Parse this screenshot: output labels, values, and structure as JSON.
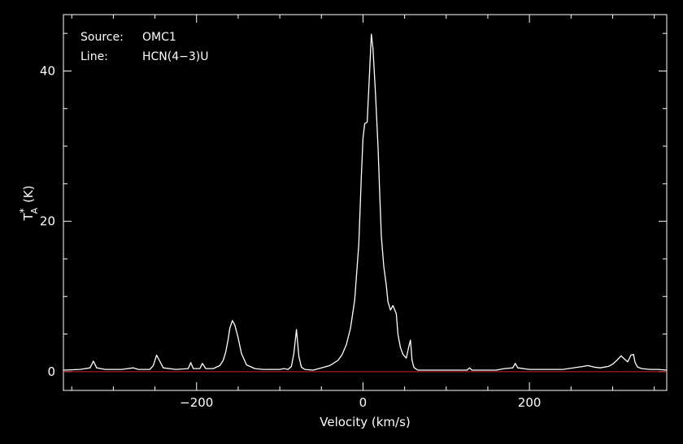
{
  "chart_data": {
    "type": "line",
    "annotations": [
      {
        "key": "Source:",
        "value": "OMC1"
      },
      {
        "key": "Line:",
        "value": "HCN(4−3)U"
      }
    ],
    "xlabel": "Velocity (km/s)",
    "ylabel_main": "T",
    "ylabel_sup": "*",
    "ylabel_sub": "A",
    "ylabel_unit": "(K)",
    "xlim": [
      -360,
      365
    ],
    "ylim": [
      -2.5,
      47.5
    ],
    "xticks": [
      -200,
      0,
      200
    ],
    "yticks": [
      0,
      20,
      40
    ],
    "xtick_labels": [
      "−200",
      "0",
      "200"
    ],
    "ytick_labels": [
      "0",
      "20",
      "40"
    ],
    "baseline": 0,
    "colors": {
      "background": "#000000",
      "spectrum": "#ffffff",
      "baseline": "#cc2222",
      "axes": "#ffffff"
    },
    "series": [
      {
        "x": [
          -360,
          -340,
          -328,
          -324,
          -320,
          -310,
          -290,
          -276,
          -270,
          -256,
          -252,
          -248,
          -240,
          -225,
          -210,
          -207,
          -204,
          -200,
          -196,
          -193,
          -189,
          -180,
          -172,
          -168,
          -165,
          -162,
          -160,
          -157,
          -154,
          -150,
          -146,
          -140,
          -130,
          -120,
          -100,
          -95,
          -90,
          -86,
          -83,
          -80,
          -77,
          -74,
          -70,
          -60,
          -50,
          -40,
          -30,
          -25,
          -20,
          -15,
          -10,
          -5,
          -2,
          0,
          2,
          5,
          8,
          10,
          12,
          15,
          18,
          20,
          22,
          25,
          28,
          30,
          33,
          36,
          40,
          42,
          45,
          48,
          52,
          55,
          57,
          59,
          61,
          63,
          66,
          70,
          80,
          100,
          125,
          128,
          131,
          140,
          160,
          170,
          180,
          183,
          186,
          200,
          240,
          265,
          270,
          278,
          285,
          295,
          300,
          305,
          310,
          315,
          318,
          322,
          325,
          327,
          330,
          335,
          345,
          355,
          365
        ],
        "y": [
          0.2,
          0.3,
          0.5,
          1.4,
          0.5,
          0.3,
          0.3,
          0.5,
          0.3,
          0.3,
          0.8,
          2.2,
          0.5,
          0.3,
          0.4,
          1.2,
          0.4,
          0.4,
          0.4,
          1.1,
          0.4,
          0.4,
          0.8,
          1.5,
          2.6,
          4.3,
          5.8,
          6.8,
          6.2,
          4.5,
          2.4,
          0.9,
          0.4,
          0.3,
          0.3,
          0.4,
          0.3,
          0.7,
          2.5,
          5.6,
          2.0,
          0.6,
          0.3,
          0.2,
          0.5,
          0.8,
          1.5,
          2.3,
          3.6,
          5.8,
          9.5,
          17,
          26,
          31,
          33,
          33.2,
          40,
          44.9,
          43,
          37,
          30,
          24,
          18,
          14,
          11.5,
          9.3,
          8.2,
          8.8,
          7.7,
          5.0,
          3.2,
          2.3,
          1.8,
          3.3,
          4.2,
          1.5,
          0.6,
          0.4,
          0.2,
          0.2,
          0.2,
          0.2,
          0.2,
          0.5,
          0.2,
          0.2,
          0.2,
          0.4,
          0.5,
          1.1,
          0.5,
          0.3,
          0.3,
          0.7,
          0.8,
          0.6,
          0.5,
          0.7,
          1.0,
          1.5,
          2.1,
          1.6,
          1.3,
          2.2,
          2.3,
          1.2,
          0.6,
          0.4,
          0.3,
          0.3,
          0.2
        ]
      }
    ]
  }
}
